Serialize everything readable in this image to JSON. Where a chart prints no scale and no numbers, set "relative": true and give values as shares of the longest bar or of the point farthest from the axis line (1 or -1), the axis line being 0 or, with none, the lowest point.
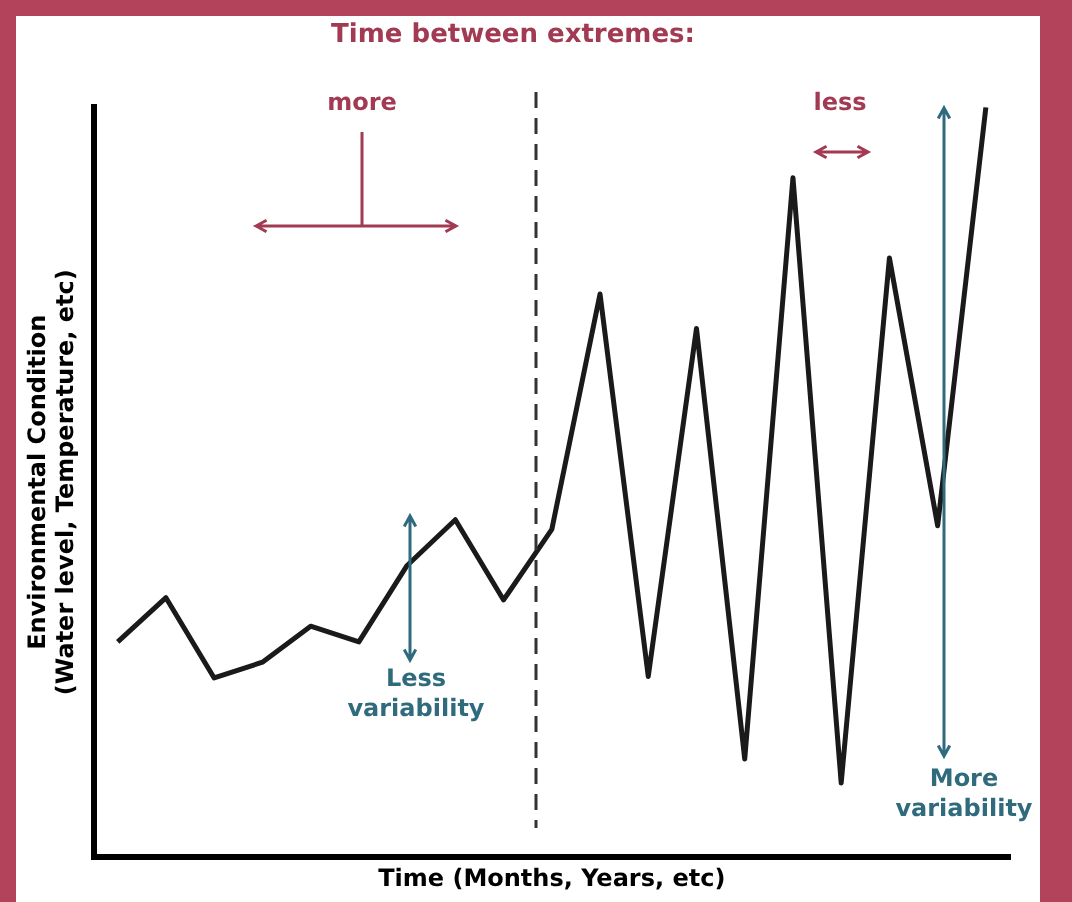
{
  "chart_data": {
    "type": "line",
    "title": "Time between extremes:",
    "xlabel": "Time (Months, Years, etc)",
    "ylabel": "Environmental Condition\n(Water level, Temperature, etc)",
    "relative": true,
    "categories": [
      null,
      null,
      null,
      null,
      null,
      null,
      null,
      null,
      null,
      null,
      null,
      null,
      null,
      null,
      null,
      null,
      null,
      null,
      null
    ],
    "series": [
      {
        "color": "#1a1a1a",
        "values": [
          0.287,
          0.346,
          0.239,
          0.26,
          0.308,
          0.287,
          0.389,
          0.45,
          0.343,
          0.437,
          0.751,
          0.241,
          0.705,
          0.131,
          0.906,
          0.099,
          0.799,
          0.442,
          1
        ]
      }
    ],
    "annotations": [
      "more",
      "less",
      "Less\nvariability",
      "More\nvariability"
    ],
    "marker": "none",
    "line_style": "solid",
    "grid": false,
    "legend": false
  }
}
